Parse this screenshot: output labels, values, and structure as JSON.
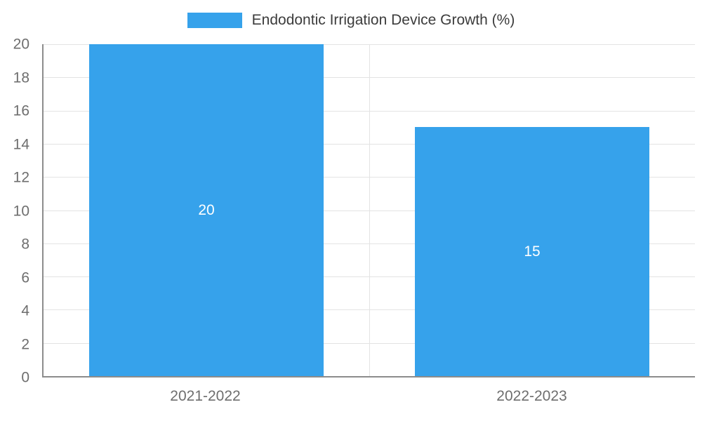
{
  "chart_data": {
    "type": "bar",
    "title": "Endodontic Irrigation Device Growth (%)",
    "categories": [
      "2021-2022",
      "2022-2023"
    ],
    "values": [
      20,
      15
    ],
    "ylim": [
      0,
      20
    ],
    "ytick_step": 2,
    "legend_position": "top",
    "grid": true,
    "data_labels_inside_bars": true
  },
  "colors": {
    "bar": "#36A2EB",
    "grid": "#e3e3e3",
    "axis": "#8c8c8c",
    "tick_label": "#6e6e6e",
    "title": "#3c3c3c",
    "data_label": "#ffffff",
    "background": "#ffffff"
  }
}
